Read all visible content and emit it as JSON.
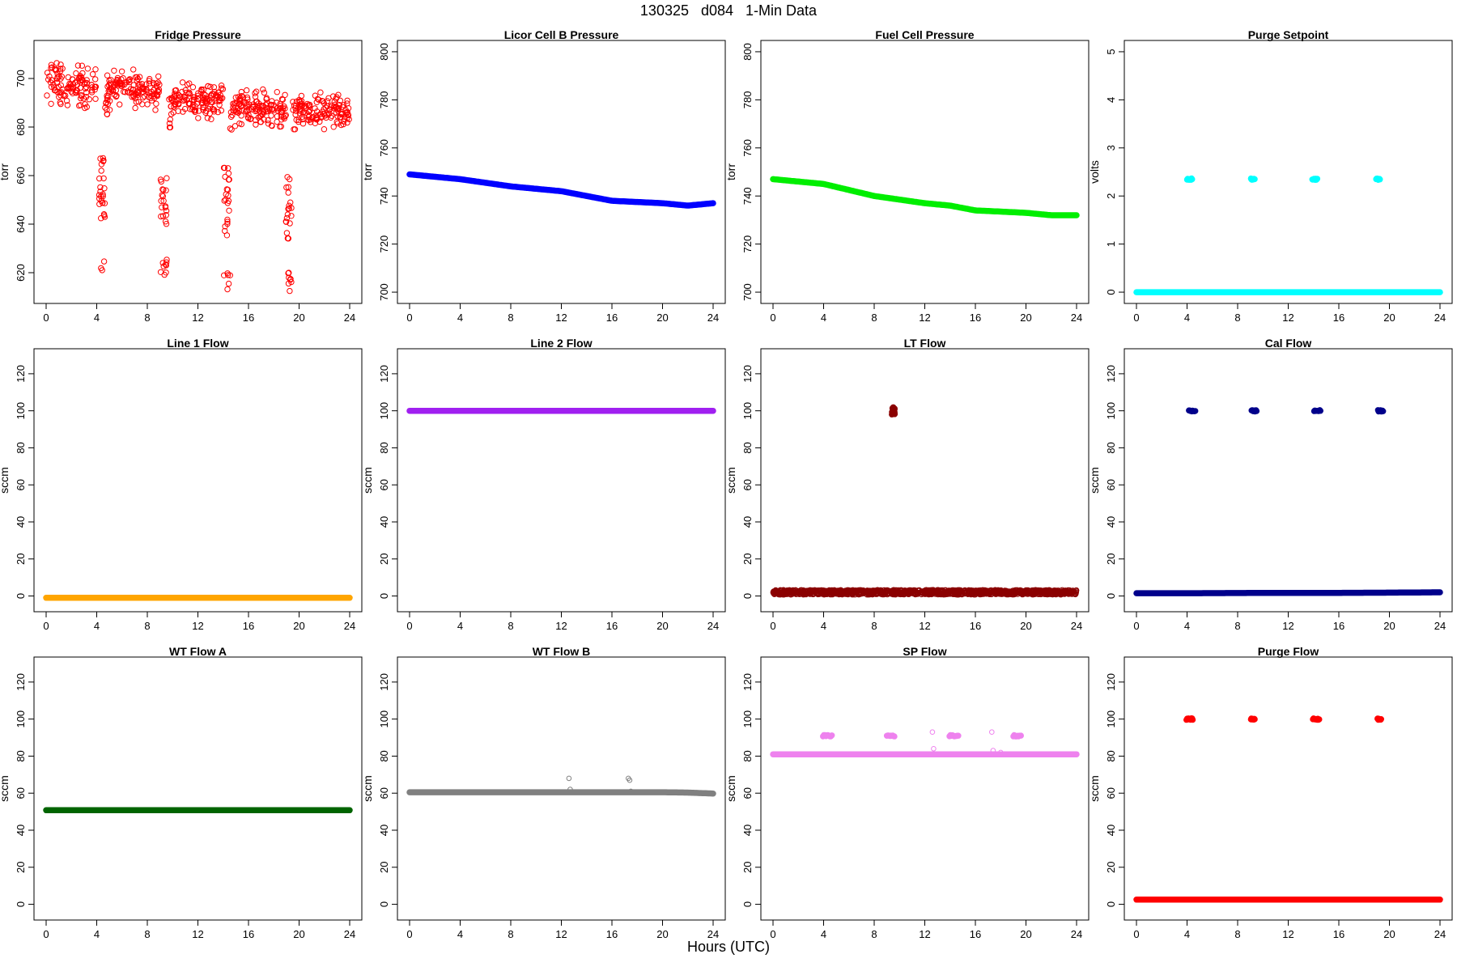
{
  "figure": {
    "title": "130325   d084   1-Min Data",
    "xlabel": "Hours (UTC)"
  },
  "chart_data": [
    {
      "type": "scatter",
      "title": "Fridge Pressure",
      "ylabel": "torr",
      "color": "#ff0000",
      "marker": "open-circle",
      "xlim": [
        0,
        24
      ],
      "ylim": [
        610,
        713
      ],
      "yticks": [
        620,
        640,
        660,
        680,
        700
      ],
      "xticks": [
        0,
        4,
        8,
        12,
        16,
        20,
        24
      ],
      "series": [
        {
          "x": [
            0,
            0.5,
            1,
            1.5,
            2,
            2.5,
            3,
            3.5,
            4
          ],
          "y": [
            697,
            699,
            698,
            697,
            696,
            697,
            696,
            697,
            697
          ],
          "noise": 5
        },
        {
          "x": [
            4.8,
            5.5,
            6,
            6.5,
            7,
            7.5,
            8,
            8.5,
            9
          ],
          "y": [
            696,
            697,
            697,
            696,
            696,
            695,
            695,
            694,
            695
          ],
          "noise": 4
        },
        {
          "x": [
            9.7,
            10,
            10.5,
            11,
            11.5,
            12,
            12.5,
            13,
            13.5,
            14
          ],
          "y": [
            692,
            692,
            691,
            691,
            692,
            692,
            691,
            691,
            691,
            691
          ],
          "noise": 4
        },
        {
          "x": [
            14.7,
            15,
            15.5,
            16,
            16.5,
            17,
            17.5,
            18,
            18.5,
            19
          ],
          "y": [
            688,
            689,
            688,
            688,
            688,
            688,
            688,
            687,
            687,
            688
          ],
          "noise": 4
        },
        {
          "x": [
            19.7,
            20,
            20.5,
            21,
            21.5,
            22,
            22.5,
            23,
            23.5,
            24
          ],
          "y": [
            686,
            687,
            686,
            686,
            686,
            686,
            686,
            686,
            686,
            686
          ],
          "noise": 4
        }
      ],
      "events": [
        {
          "x": 4.4,
          "low": 620,
          "high": 668
        },
        {
          "x": 9.3,
          "low": 618,
          "high": 660
        },
        {
          "x": 14.3,
          "low": 612,
          "high": 664
        },
        {
          "x": 19.2,
          "low": 612,
          "high": 660
        }
      ]
    },
    {
      "type": "scatter",
      "title": "Licor Cell B Pressure",
      "ylabel": "torr",
      "color": "#0000ff",
      "marker": "filled-circle",
      "xlim": [
        0,
        24
      ],
      "ylim": [
        698,
        802
      ],
      "yticks": [
        700,
        720,
        740,
        760,
        780,
        800
      ],
      "xticks": [
        0,
        4,
        8,
        12,
        16,
        20,
        24
      ],
      "series": [
        {
          "x": [
            0,
            4,
            8,
            12,
            14,
            16,
            20,
            22,
            24
          ],
          "y": [
            749,
            747,
            744,
            742,
            740,
            738,
            737,
            736,
            737
          ]
        }
      ]
    },
    {
      "type": "scatter",
      "title": "Fuel Cell Pressure",
      "ylabel": "torr",
      "color": "#00ee00",
      "marker": "filled-circle",
      "xlim": [
        0,
        24
      ],
      "ylim": [
        698,
        802
      ],
      "yticks": [
        700,
        720,
        740,
        760,
        780,
        800
      ],
      "xticks": [
        0,
        4,
        8,
        12,
        16,
        20,
        24
      ],
      "series": [
        {
          "x": [
            0,
            4,
            8,
            12,
            14,
            16,
            20,
            22,
            24
          ],
          "y": [
            747,
            745,
            740,
            737,
            736,
            734,
            733,
            732,
            732
          ]
        }
      ]
    },
    {
      "type": "scatter",
      "title": "Purge Setpoint",
      "ylabel": "volts",
      "color": "#00ffff",
      "marker": "filled-circle",
      "xlim": [
        0,
        24
      ],
      "ylim": [
        -0.1,
        5.1
      ],
      "yticks": [
        0,
        1,
        2,
        3,
        4,
        5
      ],
      "xticks": [
        0,
        4,
        8,
        12,
        16,
        20,
        24
      ],
      "series": [
        {
          "x": [
            0,
            24
          ],
          "y": [
            0,
            0
          ]
        }
      ],
      "pulses": [
        {
          "x": 4.2,
          "y": 2.35,
          "w": 0.4
        },
        {
          "x": 9.2,
          "y": 2.35,
          "w": 0.3
        },
        {
          "x": 14.1,
          "y": 2.35,
          "w": 0.4
        },
        {
          "x": 19.1,
          "y": 2.35,
          "w": 0.3
        }
      ]
    },
    {
      "type": "scatter",
      "title": "Line 1 Flow",
      "ylabel": "sccm",
      "color": "#ffa500",
      "marker": "filled-circle",
      "xlim": [
        0,
        24
      ],
      "ylim": [
        -5,
        130
      ],
      "yticks": [
        0,
        20,
        40,
        60,
        80,
        100,
        120
      ],
      "xticks": [
        0,
        4,
        8,
        12,
        16,
        20,
        24
      ],
      "series": [
        {
          "x": [
            0,
            24
          ],
          "y": [
            -1,
            -1
          ]
        }
      ]
    },
    {
      "type": "scatter",
      "title": "Line 2 Flow",
      "ylabel": "sccm",
      "color": "#a020f0",
      "marker": "filled-circle",
      "xlim": [
        0,
        24
      ],
      "ylim": [
        -5,
        130
      ],
      "yticks": [
        0,
        20,
        40,
        60,
        80,
        100,
        120
      ],
      "xticks": [
        0,
        4,
        8,
        12,
        16,
        20,
        24
      ],
      "series": [
        {
          "x": [
            0,
            24
          ],
          "y": [
            100,
            100
          ]
        }
      ]
    },
    {
      "type": "scatter",
      "title": "LT Flow",
      "ylabel": "sccm",
      "color": "#8b0000",
      "marker": "open-circle",
      "xlim": [
        0,
        24
      ],
      "ylim": [
        -5,
        130
      ],
      "yticks": [
        0,
        20,
        40,
        60,
        80,
        100,
        120
      ],
      "xticks": [
        0,
        4,
        8,
        12,
        16,
        20,
        24
      ],
      "series": [
        {
          "x": [
            0,
            24
          ],
          "y": [
            2,
            2
          ]
        }
      ],
      "pulses": [
        {
          "x": 9.5,
          "y": 100,
          "w": 0.25
        }
      ]
    },
    {
      "type": "scatter",
      "title": "Cal Flow",
      "ylabel": "sccm",
      "color": "#00008b",
      "marker": "filled-circle",
      "xlim": [
        0,
        24
      ],
      "ylim": [
        -5,
        130
      ],
      "yticks": [
        0,
        20,
        40,
        60,
        80,
        100,
        120
      ],
      "xticks": [
        0,
        4,
        8,
        12,
        16,
        20,
        24
      ],
      "series": [
        {
          "x": [
            0,
            4,
            8,
            12,
            16,
            20,
            24
          ],
          "y": [
            1.5,
            1.5,
            1.6,
            1.7,
            1.7,
            1.8,
            2
          ]
        }
      ],
      "pulses": [
        {
          "x": 4.4,
          "y": 100,
          "w": 0.5
        },
        {
          "x": 9.3,
          "y": 100,
          "w": 0.4
        },
        {
          "x": 14.3,
          "y": 100,
          "w": 0.5
        },
        {
          "x": 19.3,
          "y": 100,
          "w": 0.4
        }
      ]
    },
    {
      "type": "scatter",
      "title": "WT Flow A",
      "ylabel": "sccm",
      "color": "#006400",
      "marker": "filled-circle",
      "xlim": [
        0,
        24
      ],
      "ylim": [
        -5,
        130
      ],
      "yticks": [
        0,
        20,
        40,
        60,
        80,
        100,
        120
      ],
      "xticks": [
        0,
        4,
        8,
        12,
        16,
        20,
        24
      ],
      "series": [
        {
          "x": [
            0,
            24
          ],
          "y": [
            50.8,
            50.8
          ]
        }
      ]
    },
    {
      "type": "scatter",
      "title": "WT Flow B",
      "ylabel": "sccm",
      "color": "#808080",
      "marker": "filled-circle",
      "xlim": [
        0,
        24
      ],
      "ylim": [
        -5,
        130
      ],
      "yticks": [
        0,
        20,
        40,
        60,
        80,
        100,
        120
      ],
      "xticks": [
        0,
        4,
        8,
        12,
        16,
        20,
        24
      ],
      "series": [
        {
          "x": [
            0,
            20,
            22,
            24
          ],
          "y": [
            60.5,
            60.5,
            60.3,
            59.8
          ]
        }
      ],
      "outliers": [
        {
          "x": 12.6,
          "y": 68
        },
        {
          "x": 12.7,
          "y": 62
        },
        {
          "x": 17.3,
          "y": 68
        },
        {
          "x": 17.4,
          "y": 67
        },
        {
          "x": 17.5,
          "y": 61
        }
      ]
    },
    {
      "type": "scatter",
      "title": "SP Flow",
      "ylabel": "sccm",
      "color": "#ee82ee",
      "marker": "filled-circle",
      "xlim": [
        0,
        24
      ],
      "ylim": [
        -5,
        130
      ],
      "yticks": [
        0,
        20,
        40,
        60,
        80,
        100,
        120
      ],
      "xticks": [
        0,
        4,
        8,
        12,
        16,
        20,
        24
      ],
      "series": [
        {
          "x": [
            0,
            24
          ],
          "y": [
            81,
            81
          ]
        }
      ],
      "pulses": [
        {
          "x": 4.3,
          "y": 91,
          "w": 0.7
        },
        {
          "x": 9.3,
          "y": 91,
          "w": 0.6
        },
        {
          "x": 14.3,
          "y": 91,
          "w": 0.7
        },
        {
          "x": 19.3,
          "y": 91,
          "w": 0.6
        }
      ],
      "outliers": [
        {
          "x": 12.6,
          "y": 93
        },
        {
          "x": 12.7,
          "y": 84
        },
        {
          "x": 17.3,
          "y": 93
        },
        {
          "x": 17.4,
          "y": 83
        },
        {
          "x": 18,
          "y": 82
        }
      ]
    },
    {
      "type": "scatter",
      "title": "Purge Flow",
      "ylabel": "sccm",
      "color": "#ff0000",
      "marker": "filled-circle",
      "xlim": [
        0,
        24
      ],
      "ylim": [
        -5,
        130
      ],
      "yticks": [
        0,
        20,
        40,
        60,
        80,
        100,
        120
      ],
      "xticks": [
        0,
        4,
        8,
        12,
        16,
        20,
        24
      ],
      "series": [
        {
          "x": [
            0,
            24
          ],
          "y": [
            2.5,
            2.5
          ]
        }
      ],
      "pulses": [
        {
          "x": 4.2,
          "y": 100,
          "w": 0.5
        },
        {
          "x": 9.2,
          "y": 100,
          "w": 0.3
        },
        {
          "x": 14.2,
          "y": 100,
          "w": 0.5
        },
        {
          "x": 19.2,
          "y": 100,
          "w": 0.3
        }
      ]
    }
  ]
}
